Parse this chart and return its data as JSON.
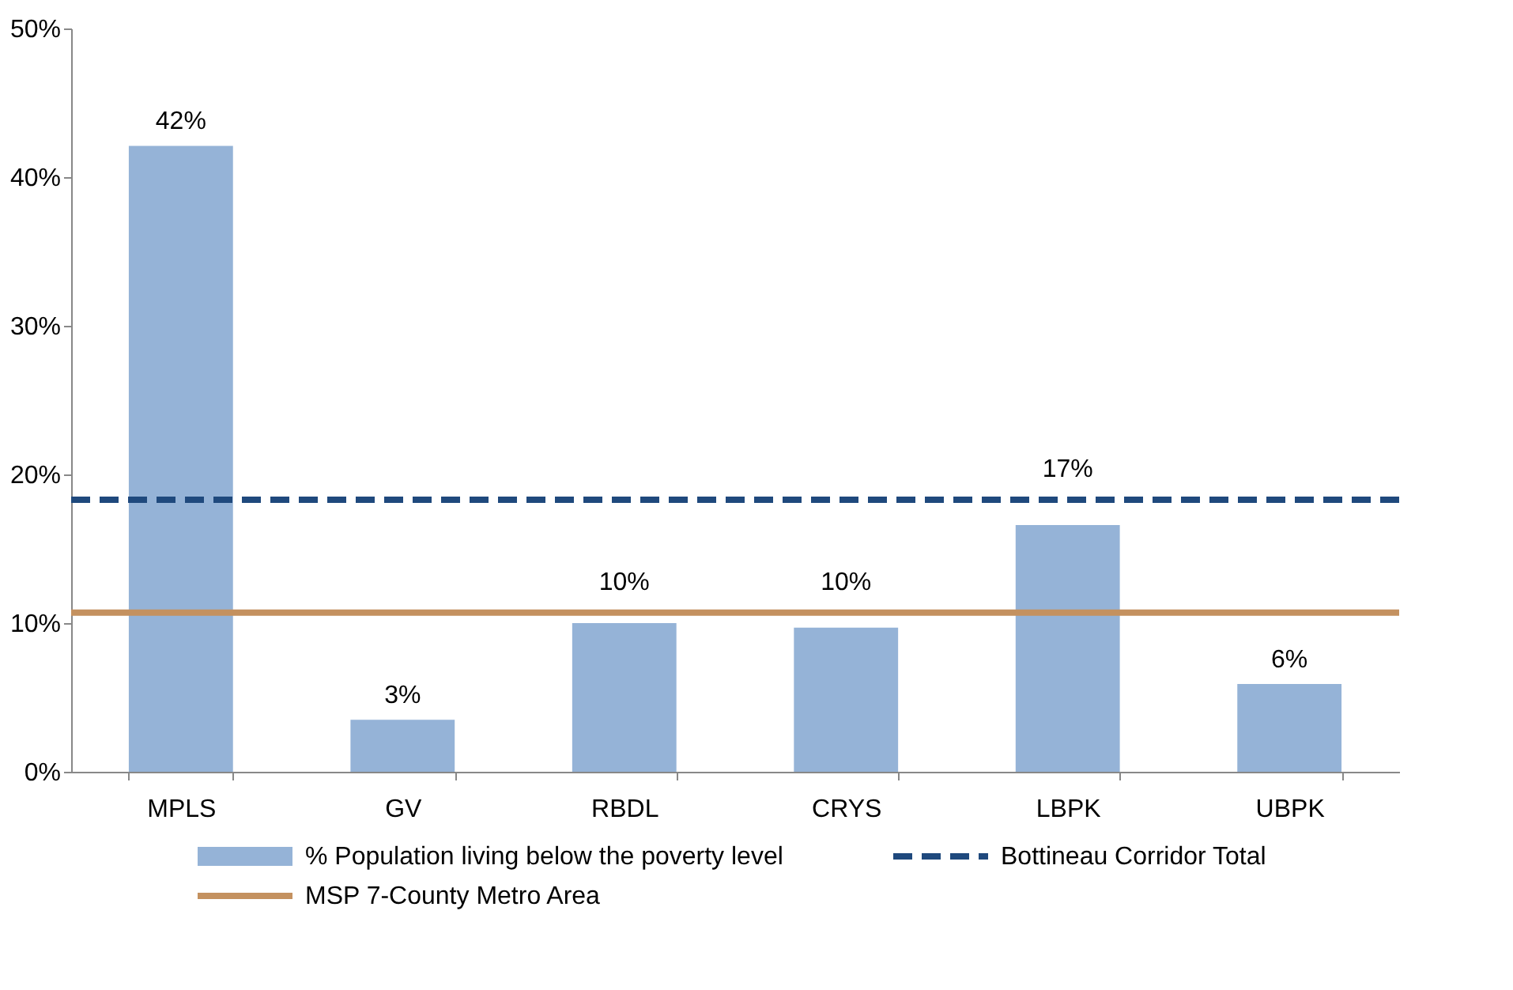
{
  "chart_data": {
    "type": "bar",
    "categories": [
      "MPLS",
      "GV",
      "RBDL",
      "CRYS",
      "LBPK",
      "UBPK"
    ],
    "series": [
      {
        "name": "% Population living below the poverty level",
        "color": "#95b3d7",
        "values": [
          42.1,
          3.5,
          10.0,
          9.7,
          16.6,
          5.9
        ],
        "value_labels": [
          "42%",
          "3%",
          "10%",
          "10%",
          "17%",
          "6%"
        ]
      }
    ],
    "ref_lines": [
      {
        "axis": "y",
        "value": 18.3,
        "label": "Bottineau Corridor Total",
        "color": "#1f497d",
        "line_style": "dashed"
      },
      {
        "axis": "y",
        "value": 10.7,
        "label": "MSP 7-County Metro Area",
        "color": "#c4915f",
        "line_style": "solid"
      }
    ],
    "ylim": [
      0,
      50
    ],
    "yticks": [
      {
        "value": 0,
        "label": "0%"
      },
      {
        "value": 10,
        "label": "10%"
      },
      {
        "value": 20,
        "label": "20%"
      },
      {
        "value": 30,
        "label": "30%"
      },
      {
        "value": 40,
        "label": "40%"
      },
      {
        "value": 50,
        "label": "50%"
      }
    ],
    "grid": false,
    "legend": "bottom"
  }
}
